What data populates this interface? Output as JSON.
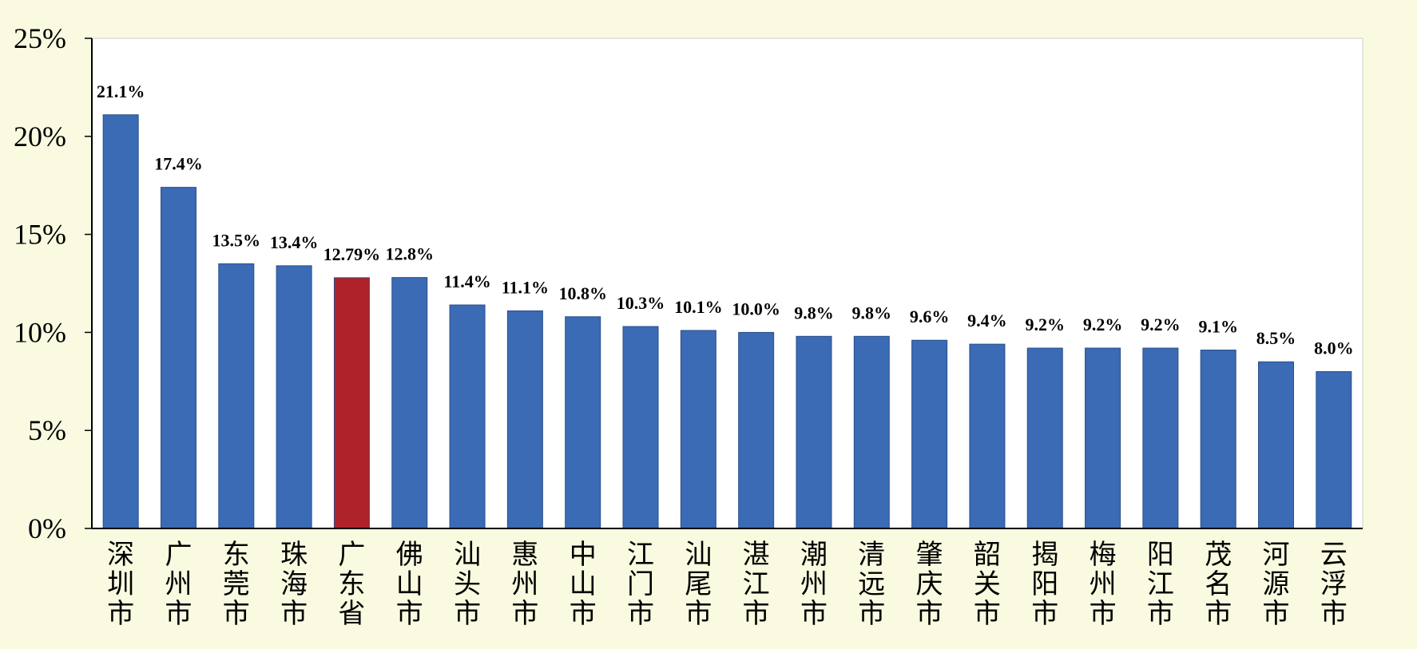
{
  "chart_data": {
    "type": "bar",
    "categories": [
      "深圳市",
      "广州市",
      "东莞市",
      "珠海市",
      "广东省",
      "佛山市",
      "汕头市",
      "惠州市",
      "中山市",
      "江门市",
      "汕尾市",
      "湛江市",
      "潮州市",
      "清远市",
      "肇庆市",
      "韶关市",
      "揭阳市",
      "梅州市",
      "阳江市",
      "茂名市",
      "河源市",
      "云浮市"
    ],
    "values": [
      21.1,
      17.4,
      13.5,
      13.4,
      12.79,
      12.8,
      11.4,
      11.1,
      10.8,
      10.3,
      10.1,
      10.0,
      9.8,
      9.8,
      9.6,
      9.4,
      9.2,
      9.2,
      9.2,
      9.1,
      8.5,
      8.0
    ],
    "data_labels": [
      "21.1%",
      "17.4%",
      "13.5%",
      "13.4%",
      "12.79%",
      "12.8%",
      "11.4%",
      "11.1%",
      "10.8%",
      "10.3%",
      "10.1%",
      "10.0%",
      "9.8%",
      "9.8%",
      "9.6%",
      "9.4%",
      "9.2%",
      "9.2%",
      "9.2%",
      "9.1%",
      "8.5%",
      "8.0%"
    ],
    "bar_colors": [
      "#3a6bb4",
      "#3a6bb4",
      "#3a6bb4",
      "#3a6bb4",
      "#b0222a",
      "#3a6bb4",
      "#3a6bb4",
      "#3a6bb4",
      "#3a6bb4",
      "#3a6bb4",
      "#3a6bb4",
      "#3a6bb4",
      "#3a6bb4",
      "#3a6bb4",
      "#3a6bb4",
      "#3a6bb4",
      "#3a6bb4",
      "#3a6bb4",
      "#3a6bb4",
      "#3a6bb4",
      "#3a6bb4",
      "#3a6bb4"
    ],
    "y_ticks": [
      "0%",
      "5%",
      "10%",
      "15%",
      "20%",
      "25%"
    ],
    "ylim": [
      0,
      25
    ],
    "title": "",
    "xlabel": "",
    "ylabel": "",
    "grid": false,
    "colors": {
      "background": "#fafae0",
      "plot_area": "#ffffff",
      "bar": "#3a6bb4",
      "highlight_bar": "#b0222a",
      "axis": "#000000"
    }
  }
}
